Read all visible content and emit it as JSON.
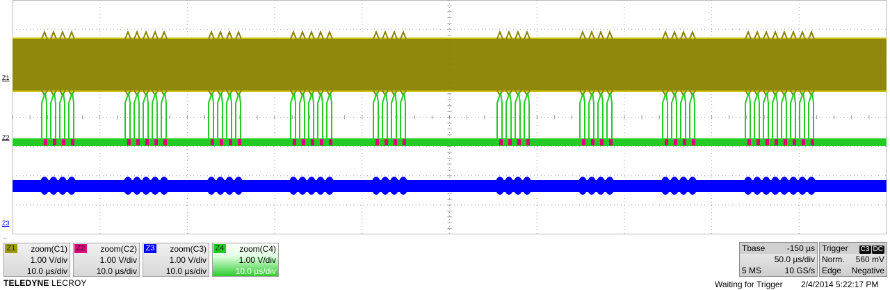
{
  "colors": {
    "z1": "#8a8200",
    "z2": "#e0007a",
    "z3": "#0000ff",
    "z4": "#22cc22",
    "grid": "#9a9a9a"
  },
  "markers": {
    "z1": "Z1",
    "z2": "Z2",
    "z3": "Z3"
  },
  "channels": [
    {
      "tag": "Z1",
      "title": "zoom(C1)",
      "vdiv": "1.00 V/div",
      "tdiv": "10.0 µs/div"
    },
    {
      "tag": "Z2",
      "title": "zoom(C2)",
      "vdiv": "1.00 V/div",
      "tdiv": "10.0 µs/div"
    },
    {
      "tag": "Z3",
      "title": "zoom(C3)",
      "vdiv": "1.00 V/div",
      "tdiv": "10.0 µs/div"
    },
    {
      "tag": "Z4",
      "title": "zoom(C4)",
      "vdiv": "1.00 V/div",
      "tdiv": "10.0 µs/div"
    }
  ],
  "brand": {
    "bold": "TELEDYNE",
    "light": "LECROY"
  },
  "timebase": {
    "label": "Tbase",
    "delay": "-150 µs",
    "tdiv": "50.0 µs/div",
    "points": "5 MS",
    "rate": "10 GS/s"
  },
  "trigger": {
    "label": "Trigger",
    "source": "C3",
    "coupling": "DC",
    "mode": "Norm.",
    "level": "560 mV",
    "type": "Edge",
    "slope": "Negative"
  },
  "status": "Waiting for Trigger",
  "datetime": "2/4/2014 5:22:17 PM"
}
